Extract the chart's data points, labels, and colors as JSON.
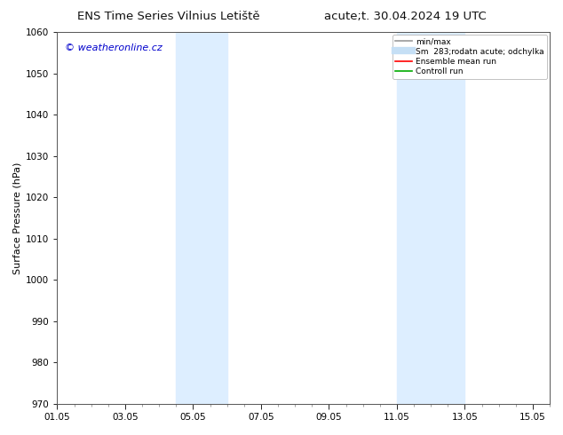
{
  "title_left": "ENS Time Series Vilnius Letiště",
  "title_right": "acute;t. 30.04.2024 19 UTC",
  "ylabel": "Surface Pressure (hPa)",
  "ylim": [
    970,
    1060
  ],
  "yticks": [
    970,
    980,
    990,
    1000,
    1010,
    1020,
    1030,
    1040,
    1050,
    1060
  ],
  "xlim_start": 0,
  "xlim_end": 14,
  "xtick_labels": [
    "01.05",
    "03.05",
    "05.05",
    "07.05",
    "09.05",
    "11.05",
    "13.05",
    "15.05"
  ],
  "xtick_positions": [
    0,
    2,
    4,
    6,
    8,
    10,
    12,
    14
  ],
  "shaded_regions": [
    {
      "xmin": 3.5,
      "xmax": 5.0,
      "color": "#ddeeff"
    },
    {
      "xmin": 10.0,
      "xmax": 12.0,
      "color": "#ddeeff"
    }
  ],
  "watermark_text": "© weatheronline.cz",
  "watermark_color": "#0000cc",
  "background_color": "#ffffff",
  "legend_labels": [
    "min/max",
    "Sm  283;rodatn acute; odchylka",
    "Ensemble mean run",
    "Controll run"
  ],
  "legend_colors": [
    "#999999",
    "#c5dff5",
    "#ff0000",
    "#00aa00"
  ],
  "legend_lws": [
    1.2,
    6,
    1.2,
    1.2
  ],
  "title_fontsize": 9.5,
  "axis_label_fontsize": 8,
  "tick_fontsize": 7.5,
  "watermark_fontsize": 8,
  "fig_bg_color": "#ffffff",
  "spine_color": "#555555"
}
